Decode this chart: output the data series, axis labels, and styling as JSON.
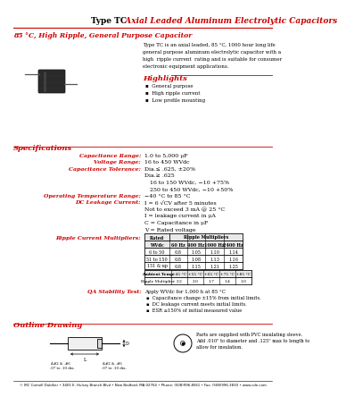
{
  "title_black": "Type TC",
  "title_red": "  Axial Leaded Aluminum Electrolytic Capacitors",
  "subtitle": "85 °C, High Ripple, General Purpose Capacitor",
  "description_lines": [
    "Type TC is an axial leaded, 85 °C, 1000 hour long life",
    "general purpose aluminum electrolytic capacitor with a",
    "high  ripple current  rating and is suitable for consumer",
    "electronic equipment applications."
  ],
  "highlights_title": "Highlights",
  "highlights": [
    "General purpose",
    "High ripple current",
    "Low profile mounting"
  ],
  "specs_title": "Specifications",
  "table_headers_row1": [
    "Rated",
    "",
    "Ripple Multipliers"
  ],
  "table_headers_row2": [
    "WVdc",
    "60 Hz",
    "400 Hz",
    "1000 Hz",
    "2400 Hz"
  ],
  "table_rows": [
    [
      "6 to 50",
      "0.8",
      "1.05",
      "1.10",
      "1.14"
    ],
    [
      "51 to 150",
      "0.8",
      "1.08",
      "1.13",
      "1.16"
    ],
    [
      "151 & up",
      "0.8",
      "1.15",
      "1.21",
      "1.25"
    ]
  ],
  "ambient_row1": [
    "Ambient Temp.",
    "+45 °C",
    "+55 °C",
    "+65 °C",
    "+75 °C",
    "+85 °C"
  ],
  "ambient_row2": [
    "Ripple Multiplier",
    "2.2",
    "2.0",
    "1.7",
    "1.4",
    "1.0"
  ],
  "qa_label": "QA Stability Test:",
  "qa_line0": "Apply WVdc for 1,000 h at 85 °C",
  "qa_bullets": [
    "Capacitance change ±15% from initial limits.",
    "DC leakage current meets initial limits.",
    "ESR ≤150% of initial measured value"
  ],
  "outline_title": "Outline Drawing",
  "outline_note": "Parts are supplied with PVC insulating sleeve.\nAdd .010\" to diameter and .125\" max to length to\nallow for insulation.",
  "footer": "© IRC Cornell Dubilier • 3401 E. Hulsey Branch Blvd • New Bedford, MA 02764 • Phone: (508)996-8561 • Fax: (508)996-3830 • www.cde.com",
  "red_color": "#CC0000",
  "black_color": "#000000",
  "bg_color": "#FFFFFF"
}
